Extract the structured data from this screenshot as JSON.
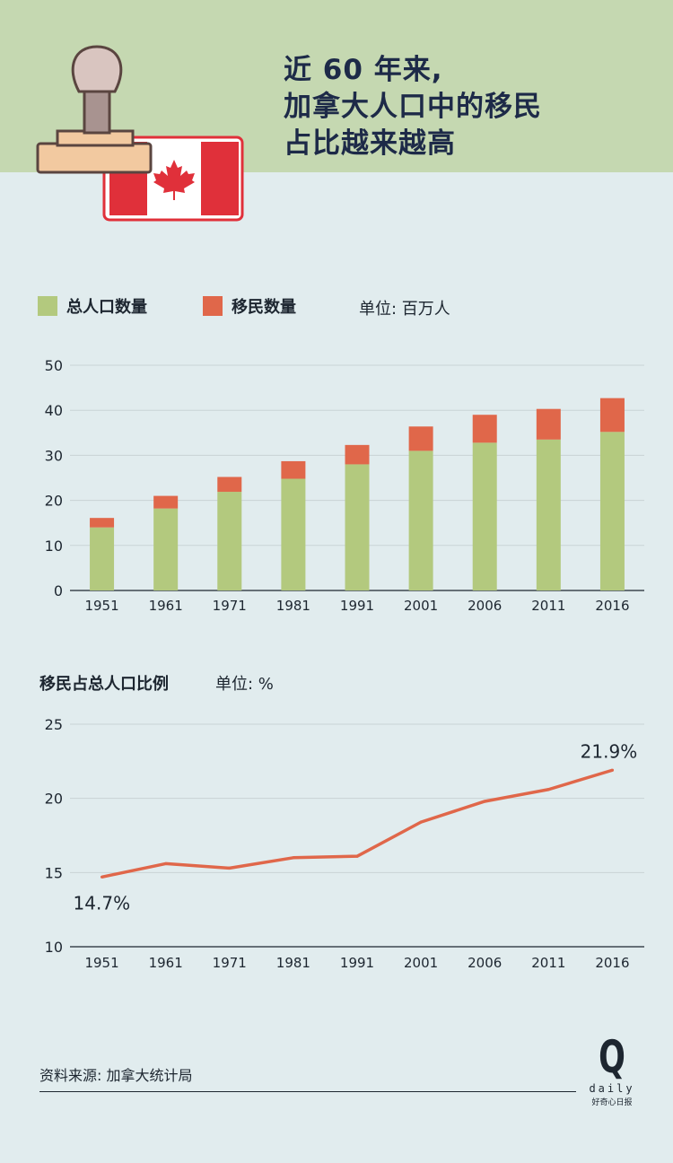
{
  "header": {
    "title_lines": [
      "近 60 年来,",
      "加拿大人口中的移民",
      "占比越来越高"
    ]
  },
  "legend": {
    "total_label": "总人口数量",
    "immigrant_label": "移民数量",
    "unit_label": "单位: 百万人"
  },
  "colors": {
    "header_bg": "#c5d8b1",
    "page_bg": "#e1ecee",
    "total": "#b3c97e",
    "immigrant": "#e0674a",
    "line": "#e0674a",
    "title": "#1d2a48"
  },
  "line_section": {
    "title": "移民占总人口比例",
    "unit_label": "单位: %"
  },
  "chart_data": [
    {
      "type": "bar",
      "stacked": true,
      "categories": [
        "1951",
        "1961",
        "1971",
        "1981",
        "1991",
        "2001",
        "2006",
        "2011",
        "2016"
      ],
      "series": [
        {
          "name": "总人口数量",
          "values": [
            14.0,
            18.2,
            21.9,
            24.8,
            28.0,
            31.0,
            32.8,
            33.5,
            35.2
          ]
        },
        {
          "name": "移民数量",
          "values": [
            2.1,
            2.8,
            3.3,
            3.9,
            4.3,
            5.4,
            6.2,
            6.8,
            7.5
          ]
        }
      ],
      "ylim": [
        0,
        50
      ],
      "yticks": [
        0,
        10,
        20,
        30,
        40,
        50
      ],
      "grid": true,
      "legend": "top-left"
    },
    {
      "type": "line",
      "categories": [
        "1951",
        "1961",
        "1971",
        "1981",
        "1991",
        "2001",
        "2006",
        "2011",
        "2016"
      ],
      "series": [
        {
          "values": [
            14.7,
            15.6,
            15.3,
            16.0,
            16.1,
            18.4,
            19.8,
            20.6,
            21.9
          ]
        }
      ],
      "ylim": [
        10,
        25
      ],
      "yticks": [
        10,
        15,
        20,
        25
      ],
      "grid": true,
      "annotations": [
        {
          "category": "1951",
          "text": "14.7%"
        },
        {
          "category": "2016",
          "text": "21.9%"
        }
      ]
    }
  ],
  "source": "资料来源: 加拿大统计局",
  "logo": {
    "mark": "Q",
    "word": "daily",
    "tagline": "好奇心日报"
  }
}
